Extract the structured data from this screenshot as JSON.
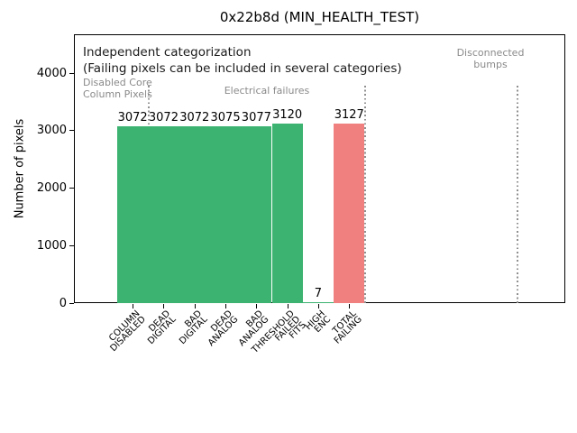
{
  "figure": {
    "title": "0x22b8d (MIN_HEALTH_TEST)"
  },
  "chart_data": {
    "type": "bar",
    "title": "0x22b8d (MIN_HEALTH_TEST)",
    "xlabel": "",
    "ylabel": "Number of pixels",
    "ylim": [
      0,
      4675
    ],
    "yticks": [
      0,
      1000,
      2000,
      3000,
      4000
    ],
    "ytick_labels": [
      "0",
      "1000",
      "2000",
      "3000",
      "4000"
    ],
    "grid": false,
    "legend": null,
    "categories": [
      "COLUMN DISABLED",
      "DEAD DIGITAL",
      "BAD DIGITAL",
      "DEAD ANALOG",
      "BAD ANALOG",
      "THRESHOLD FAILED FITS",
      "HIGH ENC",
      "TOTAL FAILING"
    ],
    "category_lines": [
      [
        "COLUMN",
        "DISABLED"
      ],
      [
        "DEAD",
        "DIGITAL"
      ],
      [
        "BAD",
        "DIGITAL"
      ],
      [
        "DEAD",
        "ANALOG"
      ],
      [
        "BAD",
        "ANALOG"
      ],
      [
        "THRESHOLD",
        "FAILED",
        "FITS"
      ],
      [
        "HIGH",
        "ENC"
      ],
      [
        "TOTAL",
        "FAILING"
      ]
    ],
    "values": [
      3072,
      3072,
      3072,
      3075,
      3077,
      3120,
      7,
      3127
    ],
    "value_labels": [
      "3072",
      "3072",
      "3072",
      "3075",
      "3077",
      "3120",
      "7",
      "3127"
    ],
    "bar_color_names": [
      "green",
      "green",
      "green",
      "green",
      "green",
      "green",
      "green",
      "red"
    ],
    "colors": {
      "green": "#3cb371",
      "red": "#f08080",
      "annotation_gray": "#8a8a8a",
      "separator_gray": "#909090",
      "separator_rose": "#c4858b",
      "spine": "#000000"
    },
    "annotations": [
      {
        "name": "annotation-independent-categorization",
        "color": "black",
        "lines": [
          "Independent categorization"
        ]
      },
      {
        "name": "annotation-failing-note",
        "color": "black",
        "lines": [
          "(Failing pixels can be included in several categories)"
        ]
      },
      {
        "name": "region-label-disabled-core-column-pixels",
        "color": "gray",
        "lines": [
          "Disabled Core",
          "Column Pixels"
        ]
      },
      {
        "name": "region-label-electrical-failures",
        "color": "gray",
        "lines": [
          "Electrical failures"
        ]
      },
      {
        "name": "region-label-disconnected-bumps",
        "color": "gray",
        "lines": [
          "Disconnected",
          "bumps"
        ]
      }
    ],
    "separator_count": 3
  }
}
